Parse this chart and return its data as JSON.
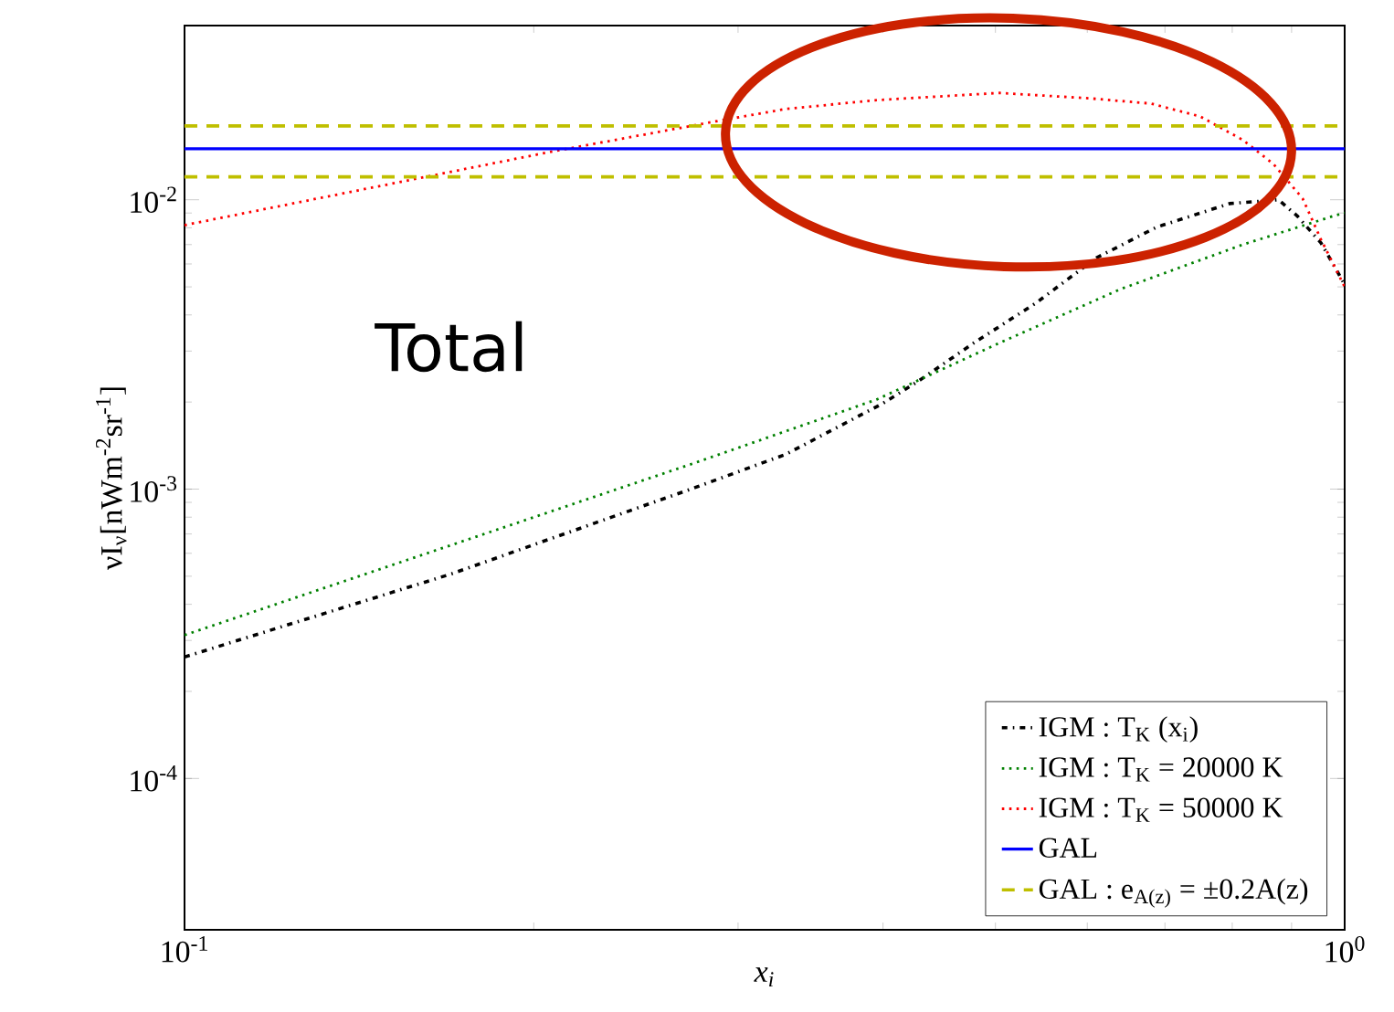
{
  "chart_data": {
    "type": "line",
    "xlabel": "x$_{i}$",
    "ylabel": "νI$_{ν}$[nWm$^{-2}$sr$^{-1}$]",
    "log": "xy",
    "xlim": [
      0.1,
      1
    ],
    "ylim": [
      3e-05,
      0.04
    ],
    "xticks": [
      {
        "value": 0.1,
        "label": "10$^{-1}$"
      },
      {
        "value": 1,
        "label": "10$^{0}$"
      }
    ],
    "yticks": [
      {
        "value": 0.0001,
        "label": "10$^{-4}$"
      },
      {
        "value": 0.001,
        "label": "10$^{-3}$"
      },
      {
        "value": 0.01,
        "label": "10$^{-2}$"
      }
    ],
    "legend": "bottom right",
    "annotations": [
      "Total"
    ],
    "series": [
      {
        "name": "IGM : T$_{K}$ (x$_{i}$)",
        "color": "#000000",
        "line_style": "dashdot",
        "x": [
          0.1,
          0.17,
          0.275,
          0.33,
          0.4,
          0.429,
          0.479,
          0.542,
          0.611,
          0.689,
          0.796,
          0.877,
          0.91,
          0.954,
          1.0
        ],
        "values": [
          0.000263,
          0.00051,
          0.00101,
          0.00132,
          0.00198,
          0.00236,
          0.0032,
          0.0044,
          0.0063,
          0.00805,
          0.0097,
          0.01,
          0.0088,
          0.0071,
          0.0051
        ]
      },
      {
        "name": "IGM : T$_{K}$ = 20000 K",
        "color": "#008000",
        "line_style": "dotted",
        "x": [
          0.1,
          0.275,
          0.395,
          0.504,
          0.64,
          0.817,
          0.979,
          1.0
        ],
        "values": [
          0.000313,
          0.00123,
          0.00204,
          0.0032,
          0.0049,
          0.007,
          0.0088,
          0.009
        ]
      },
      {
        "name": "IGM : T$_{K}$ = 50000 K",
        "color": "#ff0000",
        "line_style": "dotted",
        "x": [
          0.1,
          0.206,
          0.292,
          0.33,
          0.395,
          0.504,
          0.604,
          0.681,
          0.751,
          0.817,
          0.868,
          0.92,
          0.954,
          1.0
        ],
        "values": [
          0.00817,
          0.0146,
          0.0189,
          0.0206,
          0.0221,
          0.0234,
          0.0224,
          0.0215,
          0.0194,
          0.0161,
          0.0133,
          0.0101,
          0.0073,
          0.005
        ]
      },
      {
        "name": "GAL",
        "color": "#0000ff",
        "line_style": "solid",
        "x": [
          0.1,
          1.0
        ],
        "values": [
          0.015,
          0.015
        ]
      },
      {
        "name": "GAL : e$_{A(z)}$ = ±0.2A(z)",
        "color": "#bfbf00",
        "line_style": "dashed",
        "x": [
          0.1,
          1.0
        ],
        "values": [
          0.018,
          0.018
        ]
      },
      {
        "color": "#bfbf00",
        "line_style": "dashed",
        "x": [
          0.1,
          1.0
        ],
        "values": [
          0.012,
          0.012
        ]
      }
    ]
  }
}
